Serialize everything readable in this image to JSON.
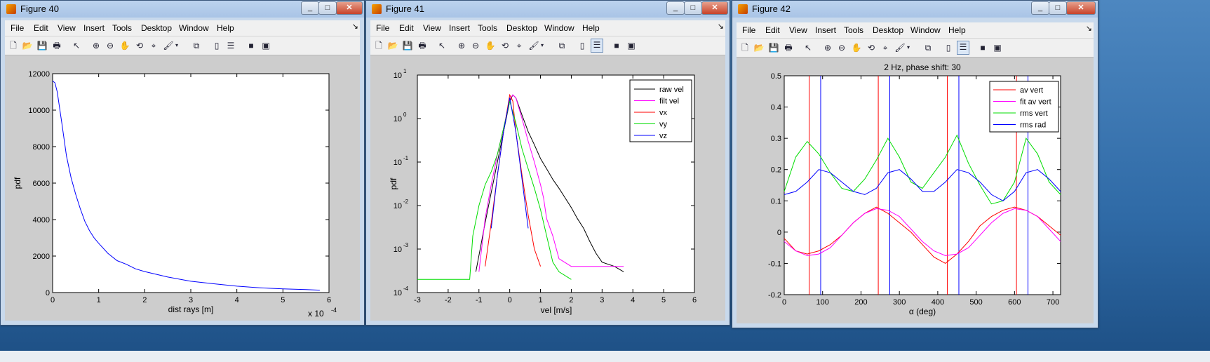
{
  "figures": [
    {
      "title": "Figure 40",
      "menu": [
        "File",
        "Edit",
        "View",
        "Insert",
        "Tools",
        "Desktop",
        "Window",
        "Help"
      ],
      "xlabel": "dist rays [m]",
      "ylabel": "pdf",
      "xtick_labels": [
        "0",
        "1",
        "2",
        "3",
        "4",
        "5",
        "6"
      ],
      "ytick_labels": [
        "0",
        "2000",
        "4000",
        "6000",
        "8000",
        "10000",
        "12000"
      ],
      "x_multiplier": "x 10",
      "x_multiplier_exp": "-4"
    },
    {
      "title": "Figure 41",
      "menu": [
        "File",
        "Edit",
        "View",
        "Insert",
        "Tools",
        "Desktop",
        "Window",
        "Help"
      ],
      "xlabel": "vel [m/s]",
      "ylabel": "pdf",
      "xtick_labels": [
        "-3",
        "-2",
        "-1",
        "0",
        "1",
        "2",
        "3",
        "4",
        "5",
        "6"
      ],
      "ytick_labels": [
        {
          "base": "10",
          "exp": "-4"
        },
        {
          "base": "10",
          "exp": "-3"
        },
        {
          "base": "10",
          "exp": "-2"
        },
        {
          "base": "10",
          "exp": "-1"
        },
        {
          "base": "10",
          "exp": "0"
        },
        {
          "base": "10",
          "exp": "1"
        }
      ],
      "legend": [
        "raw vel",
        "filt vel",
        "vx",
        "vy",
        "vz"
      ]
    },
    {
      "title": "Figure 42",
      "menu": [
        "File",
        "Edit",
        "View",
        "Insert",
        "Tools",
        "Desktop",
        "Window",
        "Help"
      ],
      "plot_title": "2 Hz, phase shift: 30",
      "xlabel": "α (deg)",
      "xtick_labels": [
        "0",
        "100",
        "200",
        "300",
        "400",
        "500",
        "600",
        "700"
      ],
      "ytick_labels": [
        "-0.2",
        "-0.1",
        "0",
        "0.1",
        "0.2",
        "0.3",
        "0.4",
        "0.5"
      ],
      "legend": [
        "av vert",
        "fit av vert",
        "rms vert",
        "rms rad"
      ]
    }
  ],
  "window_controls": [
    "_",
    "□",
    "✕"
  ],
  "colors": {
    "blue": "#0000ff",
    "black": "#000000",
    "magenta": "#ff00ff",
    "red": "#ff0000",
    "green": "#00dd00"
  },
  "chart_data": [
    {
      "type": "line",
      "xlim": [
        0,
        0.0006
      ],
      "ylim": [
        0,
        12000
      ],
      "xlabel": "dist rays [m]",
      "ylabel": "pdf",
      "series": [
        {
          "color": "#0000ff",
          "x": [
            0,
            5e-06,
            1e-05,
            2e-05,
            3e-05,
            4e-05,
            5e-05,
            6e-05,
            7e-05,
            8e-05,
            9e-05,
            0.0001,
            0.00012,
            0.00014,
            0.00016,
            0.00018,
            0.0002,
            0.00025,
            0.0003,
            0.00035,
            0.0004,
            0.00045,
            0.0005,
            0.00055,
            0.00058
          ],
          "y": [
            11600,
            11500,
            11000,
            9300,
            7500,
            6300,
            5400,
            4600,
            3900,
            3400,
            3000,
            2700,
            2150,
            1750,
            1550,
            1300,
            1150,
            850,
            620,
            480,
            350,
            260,
            200,
            160,
            130
          ]
        }
      ]
    },
    {
      "type": "line",
      "log_y": true,
      "xlim": [
        -3,
        6
      ],
      "ylim": [
        0.0001,
        10
      ],
      "xlabel": "vel [m/s]",
      "ylabel": "pdf",
      "series": [
        {
          "name": "raw vel",
          "color": "#000000",
          "x": [
            -1.1,
            -0.8,
            -0.6,
            -0.4,
            -0.2,
            0,
            0.1,
            0.2,
            0.4,
            0.6,
            0.8,
            1.0,
            1.2,
            1.4,
            1.6,
            1.8,
            2.0,
            2.2,
            2.4,
            2.6,
            2.8,
            3.0,
            3.4,
            3.7
          ],
          "y": [
            0.0003,
            0.004,
            0.02,
            0.1,
            0.5,
            2.5,
            3.5,
            3.0,
            1.2,
            0.5,
            0.25,
            0.12,
            0.07,
            0.04,
            0.025,
            0.015,
            0.009,
            0.005,
            0.003,
            0.0015,
            0.0008,
            0.0005,
            0.0004,
            0.0003
          ]
        },
        {
          "name": "filt vel",
          "color": "#ff00ff",
          "x": [
            -1.0,
            -0.8,
            -0.6,
            -0.4,
            -0.2,
            0,
            0.1,
            0.2,
            0.4,
            0.6,
            0.8,
            1.0,
            1.1,
            1.2,
            1.4,
            1.6,
            2.0,
            2.5,
            3.0,
            3.7
          ],
          "y": [
            0.0003,
            0.005,
            0.03,
            0.15,
            0.6,
            2.8,
            3.5,
            3.0,
            1.0,
            0.3,
            0.1,
            0.03,
            0.015,
            0.005,
            0.002,
            0.0006,
            0.0004,
            0.0004,
            0.0004,
            0.0004
          ]
        },
        {
          "name": "vx",
          "color": "#ff0000",
          "x": [
            -0.8,
            -0.6,
            -0.4,
            -0.2,
            0,
            0.1,
            0.2,
            0.4,
            0.6,
            0.8,
            1.0
          ],
          "y": [
            0.0004,
            0.004,
            0.05,
            0.5,
            3.5,
            2.5,
            0.5,
            0.05,
            0.006,
            0.001,
            0.0004
          ]
        },
        {
          "name": "vy",
          "color": "#00dd00",
          "x": [
            -3.0,
            -1.3,
            -1.2,
            -1.0,
            -0.8,
            -0.6,
            -0.4,
            -0.2,
            0,
            0.2,
            0.4,
            0.6,
            0.8,
            1.0,
            1.2,
            1.4,
            1.6,
            2.0
          ],
          "y": [
            0.0002,
            0.0002,
            0.002,
            0.01,
            0.03,
            0.06,
            0.15,
            0.6,
            2.5,
            0.8,
            0.2,
            0.07,
            0.025,
            0.008,
            0.002,
            0.0005,
            0.0003,
            0.0002
          ]
        },
        {
          "name": "vz",
          "color": "#0000ff",
          "x": [
            -0.6,
            -0.4,
            -0.2,
            0,
            0.2,
            0.4,
            0.6
          ],
          "y": [
            0.003,
            0.05,
            0.5,
            3.0,
            0.5,
            0.04,
            0.003
          ]
        }
      ]
    },
    {
      "type": "line",
      "title": "2 Hz, phase shift: 30",
      "xlim": [
        0,
        720
      ],
      "ylim": [
        -0.2,
        0.5
      ],
      "xlabel": "α (deg)",
      "vlines": [
        {
          "color": "#ff0000",
          "x": [
            65,
            245,
            425,
            605
          ]
        },
        {
          "color": "#0000ff",
          "x": [
            95,
            275,
            455,
            635
          ]
        }
      ],
      "series": [
        {
          "name": "av vert",
          "color": "#ff0000",
          "x": [
            0,
            30,
            60,
            90,
            120,
            150,
            180,
            210,
            240,
            270,
            300,
            330,
            360,
            390,
            420,
            450,
            480,
            510,
            540,
            570,
            600,
            630,
            660,
            690,
            720
          ],
          "y": [
            -0.02,
            -0.06,
            -0.07,
            -0.06,
            -0.04,
            -0.01,
            0.03,
            0.06,
            0.08,
            0.06,
            0.03,
            0.0,
            -0.04,
            -0.08,
            -0.1,
            -0.07,
            -0.03,
            0.02,
            0.05,
            0.07,
            0.08,
            0.07,
            0.05,
            0.02,
            -0.01
          ]
        },
        {
          "name": "fit av vert",
          "color": "#ff00ff",
          "x": [
            0,
            30,
            60,
            90,
            120,
            150,
            180,
            210,
            240,
            270,
            300,
            330,
            360,
            390,
            420,
            450,
            480,
            510,
            540,
            570,
            600,
            630,
            660,
            690,
            720
          ],
          "y": [
            -0.03,
            -0.06,
            -0.075,
            -0.07,
            -0.05,
            -0.01,
            0.03,
            0.06,
            0.075,
            0.07,
            0.05,
            0.01,
            -0.03,
            -0.06,
            -0.075,
            -0.07,
            -0.05,
            -0.01,
            0.03,
            0.06,
            0.075,
            0.07,
            0.05,
            0.01,
            -0.03
          ]
        },
        {
          "name": "rms vert",
          "color": "#00dd00",
          "x": [
            0,
            30,
            60,
            90,
            120,
            150,
            180,
            210,
            240,
            270,
            300,
            330,
            360,
            390,
            420,
            450,
            480,
            510,
            540,
            570,
            600,
            630,
            660,
            690,
            720
          ],
          "y": [
            0.13,
            0.24,
            0.29,
            0.25,
            0.19,
            0.14,
            0.13,
            0.17,
            0.23,
            0.3,
            0.24,
            0.16,
            0.14,
            0.19,
            0.24,
            0.31,
            0.22,
            0.15,
            0.09,
            0.1,
            0.16,
            0.3,
            0.25,
            0.16,
            0.12
          ]
        },
        {
          "name": "rms rad",
          "color": "#0000ff",
          "x": [
            0,
            30,
            60,
            90,
            120,
            150,
            180,
            210,
            240,
            270,
            300,
            330,
            360,
            390,
            420,
            450,
            480,
            510,
            540,
            570,
            600,
            630,
            660,
            690,
            720
          ],
          "y": [
            0.12,
            0.13,
            0.16,
            0.2,
            0.19,
            0.16,
            0.13,
            0.12,
            0.14,
            0.19,
            0.2,
            0.17,
            0.13,
            0.13,
            0.16,
            0.2,
            0.19,
            0.16,
            0.12,
            0.1,
            0.13,
            0.19,
            0.2,
            0.17,
            0.13
          ]
        }
      ]
    }
  ]
}
